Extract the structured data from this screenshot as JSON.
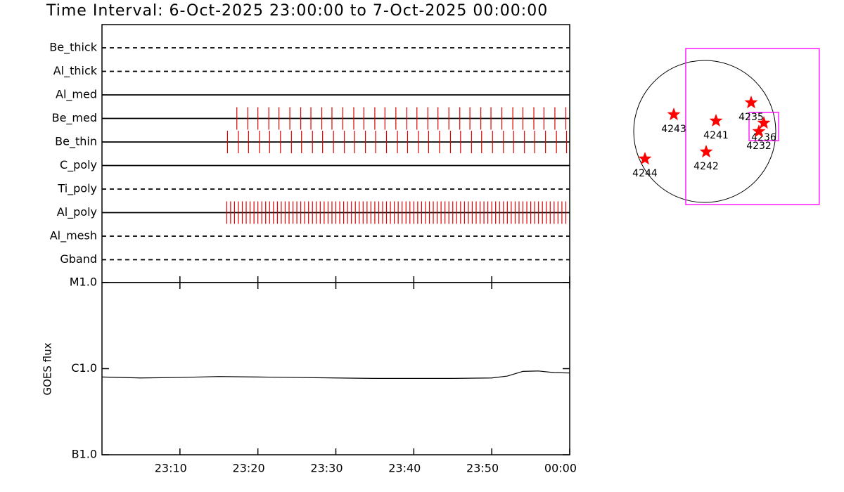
{
  "chart_data": [
    {
      "type": "timeline",
      "title": "Time Interval:  6-Oct-2025 23:00:00 to  7-Oct-2025 00:00:00",
      "xlim": [
        0,
        60
      ],
      "color": "#e00000",
      "rows": [
        {
          "name": "Be_thick",
          "style": "dashed",
          "times": []
        },
        {
          "name": "Al_thick",
          "style": "dashed",
          "times": []
        },
        {
          "name": "Al_med",
          "style": "solid",
          "times": []
        },
        {
          "name": "Be_med",
          "style": "solid",
          "times": [
            17.3,
            18.7,
            20.0,
            21.4,
            22.7,
            24.1,
            25.5,
            26.8,
            28.2,
            29.5,
            30.9,
            32.3,
            33.6,
            35.0,
            36.3,
            37.7,
            39.1,
            40.4,
            41.8,
            43.1,
            44.5,
            45.9,
            47.2,
            48.6,
            49.9,
            51.3,
            52.7,
            54.0,
            55.4,
            56.7,
            58.1,
            59.5
          ]
        },
        {
          "name": "Be_thin",
          "style": "solid",
          "times": [
            16.1,
            17.5,
            18.8,
            20.2,
            21.5,
            22.9,
            24.3,
            25.6,
            27.0,
            28.3,
            29.7,
            31.1,
            32.4,
            33.8,
            35.1,
            36.5,
            37.9,
            39.2,
            40.6,
            41.9,
            43.3,
            44.7,
            46.0,
            47.4,
            48.7,
            50.1,
            51.5,
            52.8,
            54.2,
            55.5,
            56.9,
            58.3,
            59.6
          ]
        },
        {
          "name": "C_poly",
          "style": "solid",
          "times": []
        },
        {
          "name": "Ti_poly",
          "style": "dashed",
          "times": []
        },
        {
          "name": "Al_poly",
          "style": "solid",
          "times": [
            16.0,
            16.5,
            17.0,
            17.5,
            18.0,
            18.5,
            19.0,
            19.5,
            20.0,
            20.5,
            21.0,
            21.5,
            22.0,
            22.5,
            23.0,
            23.5,
            24.0,
            24.5,
            25.0,
            25.5,
            26.0,
            26.5,
            27.0,
            27.5,
            28.0,
            28.5,
            29.0,
            29.5,
            30.0,
            30.5,
            31.0,
            31.5,
            32.0,
            32.5,
            33.0,
            33.5,
            34.0,
            34.5,
            35.0,
            35.5,
            36.0,
            36.5,
            37.0,
            37.5,
            38.0,
            38.5,
            39.0,
            39.5,
            40.0,
            40.5,
            41.0,
            41.5,
            42.0,
            42.5,
            43.0,
            43.5,
            44.0,
            44.5,
            45.0,
            45.5,
            46.0,
            46.5,
            47.0,
            47.5,
            48.0,
            48.5,
            49.0,
            49.5,
            50.0,
            50.5,
            51.0,
            51.5,
            52.0,
            52.5,
            53.0,
            53.5,
            54.0,
            54.5,
            55.0,
            55.5,
            56.0,
            56.5,
            57.0,
            57.5,
            58.0,
            58.5,
            59.0,
            59.5
          ]
        },
        {
          "name": "Al_mesh",
          "style": "dashed",
          "times": []
        },
        {
          "name": "Gband",
          "style": "dashed",
          "times": []
        }
      ]
    },
    {
      "type": "line",
      "ylabel": "GOES flux",
      "log": true,
      "color": "#000000",
      "x": [
        0,
        5,
        10,
        15,
        20,
        25,
        30,
        35,
        40,
        45,
        50,
        52,
        54,
        56,
        58,
        60
      ],
      "values": [
        8e-07,
        7.8e-07,
        7.9e-07,
        8.1e-07,
        8e-07,
        7.9e-07,
        7.8e-07,
        7.7e-07,
        7.7e-07,
        7.7e-07,
        7.8e-07,
        8.2e-07,
        9.3e-07,
        9.4e-07,
        9e-07,
        8.9e-07
      ],
      "xlim": [
        0,
        60
      ],
      "xticks": [
        {
          "value": 10,
          "label": "23:10"
        },
        {
          "value": 20,
          "label": "23:20"
        },
        {
          "value": 30,
          "label": "23:30"
        },
        {
          "value": 40,
          "label": "23:40"
        },
        {
          "value": 50,
          "label": "23:50"
        },
        {
          "value": 60,
          "label": "00:00"
        }
      ],
      "ylim": [
        1e-07,
        1e-05
      ],
      "yticks": [
        {
          "value": 1e-07,
          "label": "B1.0"
        },
        {
          "value": 1e-06,
          "label": "C1.0"
        },
        {
          "value": 1e-05,
          "label": "M1.0"
        }
      ]
    },
    {
      "type": "map",
      "color": "#ff00ff",
      "marker_color": "#ff0000",
      "points": [
        {
          "label": "4243",
          "x": -418,
          "y": 228
        },
        {
          "label": "4241",
          "x": 152,
          "y": 143
        },
        {
          "label": "4235",
          "x": 627,
          "y": 390
        },
        {
          "label": "4236",
          "x": 798,
          "y": 114
        },
        {
          "label": "4232",
          "x": 732,
          "y": 0
        },
        {
          "label": "4242",
          "x": 19,
          "y": -276
        },
        {
          "label": "4244",
          "x": -808,
          "y": -371
        }
      ],
      "fov": [
        {
          "x": [
            -257,
            1548
          ],
          "y": [
            1121,
            -989
          ]
        },
        {
          "x": [
            599,
            998
          ],
          "y": [
            257,
            -124
          ]
        }
      ]
    }
  ]
}
